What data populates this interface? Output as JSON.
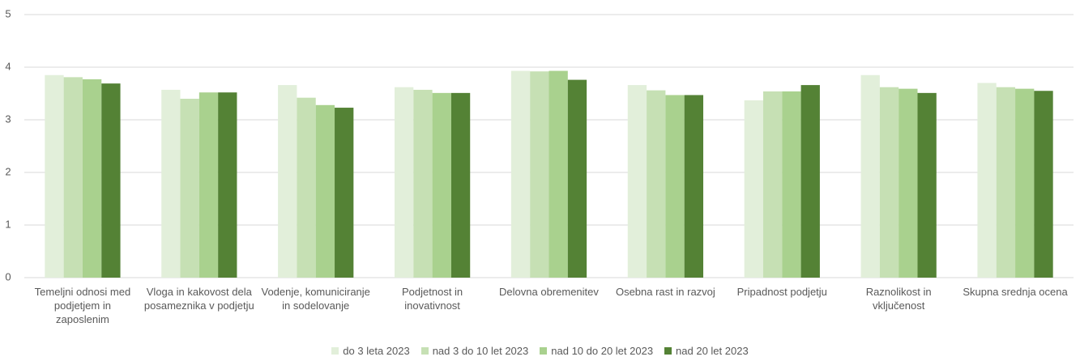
{
  "chart_data": {
    "type": "bar",
    "categories": [
      "Temeljni odnosi med podjetjem in zaposlenim",
      "Vloga in kakovost dela posameznika v podjetju",
      "Vodenje, komuniciranje in sodelovanje",
      "Podjetnost in inovativnost",
      "Delovna obremenitev",
      "Osebna rast in razvoj",
      "Pripadnost podjetju",
      "Raznolikost in vključenost",
      "Skupna srednja ocena"
    ],
    "series": [
      {
        "name": "do 3 leta 2023",
        "color": "#e2efda",
        "values": [
          3.85,
          3.57,
          3.66,
          3.62,
          3.93,
          3.66,
          3.37,
          3.85,
          3.7
        ]
      },
      {
        "name": "nad 3 do 10 let 2023",
        "color": "#c6e0b4",
        "values": [
          3.81,
          3.4,
          3.42,
          3.57,
          3.92,
          3.56,
          3.54,
          3.62,
          3.62
        ]
      },
      {
        "name": "nad 10 do 20 let 2023",
        "color": "#a9d18e",
        "values": [
          3.77,
          3.52,
          3.28,
          3.51,
          3.93,
          3.47,
          3.54,
          3.59,
          3.59
        ]
      },
      {
        "name": "nad 20 let 2023",
        "color": "#548235",
        "values": [
          3.69,
          3.52,
          3.23,
          3.51,
          3.76,
          3.47,
          3.66,
          3.51,
          3.55
        ]
      }
    ],
    "ylim": [
      0,
      5
    ],
    "yticks": [
      0,
      1,
      2,
      3,
      4,
      5
    ],
    "grid": true,
    "legend": "bottom"
  }
}
